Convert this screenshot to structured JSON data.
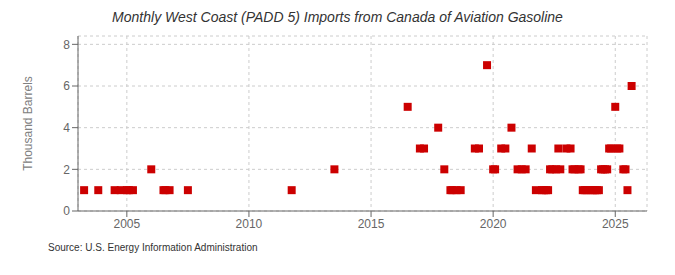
{
  "chart_data": {
    "type": "scatter",
    "title": "Monthly West Coast (PADD 5) Imports from Canada of Aviation Gasoline",
    "ylabel": "Thousand Barrels",
    "annotations": [
      "Source: U.S. Energy Information Administration"
    ],
    "color": "#cc0000",
    "marker": "square",
    "grid": true,
    "xlim": [
      2003.0,
      2026.3
    ],
    "ylim": [
      0,
      8.4
    ],
    "xticks": [
      2005,
      2010,
      2015,
      2020,
      2025
    ],
    "yticks": [
      0,
      2,
      4,
      6,
      8
    ],
    "x": [
      2003.25,
      2003.83,
      2004.5,
      2004.75,
      2005.0,
      2005.08,
      2005.25,
      2006.0,
      2006.5,
      2006.58,
      2006.75,
      2007.5,
      2011.75,
      2013.5,
      2016.5,
      2017.0,
      2017.17,
      2017.75,
      2018.0,
      2018.25,
      2018.33,
      2018.5,
      2018.67,
      2019.25,
      2019.42,
      2019.75,
      2020.0,
      2020.08,
      2020.33,
      2020.5,
      2020.75,
      2021.0,
      2021.17,
      2021.33,
      2021.58,
      2021.75,
      2022.0,
      2022.08,
      2022.17,
      2022.25,
      2022.33,
      2022.42,
      2022.58,
      2022.67,
      2022.75,
      2023.0,
      2023.17,
      2023.25,
      2023.33,
      2023.5,
      2023.58,
      2023.67,
      2023.75,
      2023.83,
      2024.0,
      2024.08,
      2024.17,
      2024.25,
      2024.33,
      2024.42,
      2024.5,
      2024.58,
      2024.67,
      2024.75,
      2024.83,
      2025.0,
      2025.08,
      2025.17,
      2025.33,
      2025.42,
      2025.5,
      2025.67
    ],
    "values": [
      1,
      1,
      1,
      1,
      1,
      1,
      1,
      2,
      1,
      1,
      1,
      1,
      1,
      2,
      5,
      3,
      3,
      4,
      2,
      1,
      1,
      1,
      1,
      3,
      3,
      7,
      2,
      2,
      3,
      3,
      4,
      2,
      2,
      2,
      3,
      1,
      1,
      1,
      1,
      1,
      2,
      2,
      2,
      3,
      2,
      3,
      3,
      2,
      2,
      2,
      2,
      1,
      1,
      1,
      1,
      1,
      1,
      1,
      1,
      2,
      2,
      2,
      2,
      3,
      3,
      5,
      3,
      3,
      2,
      2,
      1,
      6
    ]
  }
}
